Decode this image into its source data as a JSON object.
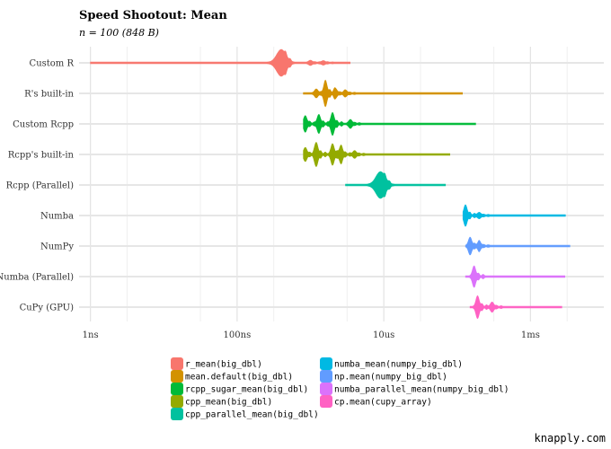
{
  "chart_data": {
    "type": "violin",
    "title": "Speed Shootout: Mean",
    "subtitle": "n = 100 (848 B)",
    "caption": "knapply.com",
    "x_scale": "log10",
    "x_unit": "seconds",
    "x_ticks": [
      {
        "value": 1e-09,
        "label": "1ns"
      },
      {
        "value": 1e-07,
        "label": "100ns"
      },
      {
        "value": 1e-05,
        "label": "10us"
      },
      {
        "value": 0.001,
        "label": "1ms"
      }
    ],
    "xlim": [
      7e-10,
      0.01
    ],
    "categories": [
      "Custom R",
      "R's built-in",
      "Custom Rcpp",
      "Rcpp's built-in",
      "Rcpp (Parallel)",
      "Numba",
      "NumPy",
      "Numba (Parallel)",
      "CuPy (GPU)"
    ],
    "series": [
      {
        "name": "r_mean(big_dbl)",
        "category": "Custom R",
        "color": "#F8766D",
        "min": 1e-09,
        "max": 3.5e-06,
        "peaks": [
          [
            4e-07,
            1.0
          ],
          [
            1e-06,
            0.15
          ],
          [
            1.5e-06,
            0.12
          ]
        ]
      },
      {
        "name": "mean.default(big_dbl)",
        "category": "R's built-in",
        "color": "#D39200",
        "min": 8e-07,
        "max": 0.00012,
        "peaks": [
          [
            1.6e-06,
            0.95
          ],
          [
            1.2e-06,
            0.3
          ],
          [
            2.2e-06,
            0.3
          ],
          [
            3e-06,
            0.2
          ]
        ]
      },
      {
        "name": "rcpp_sugar_mean(big_dbl)",
        "category": "Custom Rcpp",
        "color": "#00BA38",
        "min": 8e-07,
        "max": 0.00018,
        "peaks": [
          [
            8.5e-07,
            0.6
          ],
          [
            1.3e-06,
            0.7
          ],
          [
            2e-06,
            0.85
          ],
          [
            3.5e-06,
            0.3
          ]
        ]
      },
      {
        "name": "cpp_mean(big_dbl)",
        "category": "Rcpp's built-in",
        "color": "#93AA00",
        "min": 8e-07,
        "max": 8e-05,
        "peaks": [
          [
            8.5e-07,
            0.5
          ],
          [
            1.2e-06,
            0.9
          ],
          [
            2e-06,
            0.8
          ],
          [
            2.6e-06,
            0.6
          ],
          [
            4e-06,
            0.25
          ]
        ]
      },
      {
        "name": "cpp_parallel_mean(big_dbl)",
        "category": "Rcpp (Parallel)",
        "color": "#00C19F",
        "min": 3e-06,
        "max": 7e-05,
        "peaks": [
          [
            9e-06,
            1.0
          ]
        ]
      },
      {
        "name": "numba_mean(numpy_big_dbl)",
        "category": "Numba",
        "color": "#00B9E3",
        "min": 0.00012,
        "max": 0.003,
        "peaks": [
          [
            0.00013,
            0.8
          ],
          [
            0.0002,
            0.2
          ]
        ]
      },
      {
        "name": "np.mean(numpy_big_dbl)",
        "category": "NumPy",
        "color": "#619CFF",
        "min": 0.00013,
        "max": 0.0035,
        "peaks": [
          [
            0.00015,
            0.65
          ],
          [
            0.0002,
            0.3
          ]
        ]
      },
      {
        "name": "numba_parallel_mean(numpy_big_dbl)",
        "category": "Numba (Parallel)",
        "color": "#DB72FB",
        "min": 0.00013,
        "max": 0.003,
        "peaks": [
          [
            0.00017,
            0.8
          ]
        ]
      },
      {
        "name": "cp.mean(cupy_array)",
        "category": "CuPy (GPU)",
        "color": "#FF61C3",
        "min": 0.00015,
        "max": 0.0027,
        "peaks": [
          [
            0.00019,
            0.85
          ],
          [
            0.0003,
            0.35
          ]
        ]
      }
    ],
    "legend_position": "bottom",
    "grid": true
  }
}
